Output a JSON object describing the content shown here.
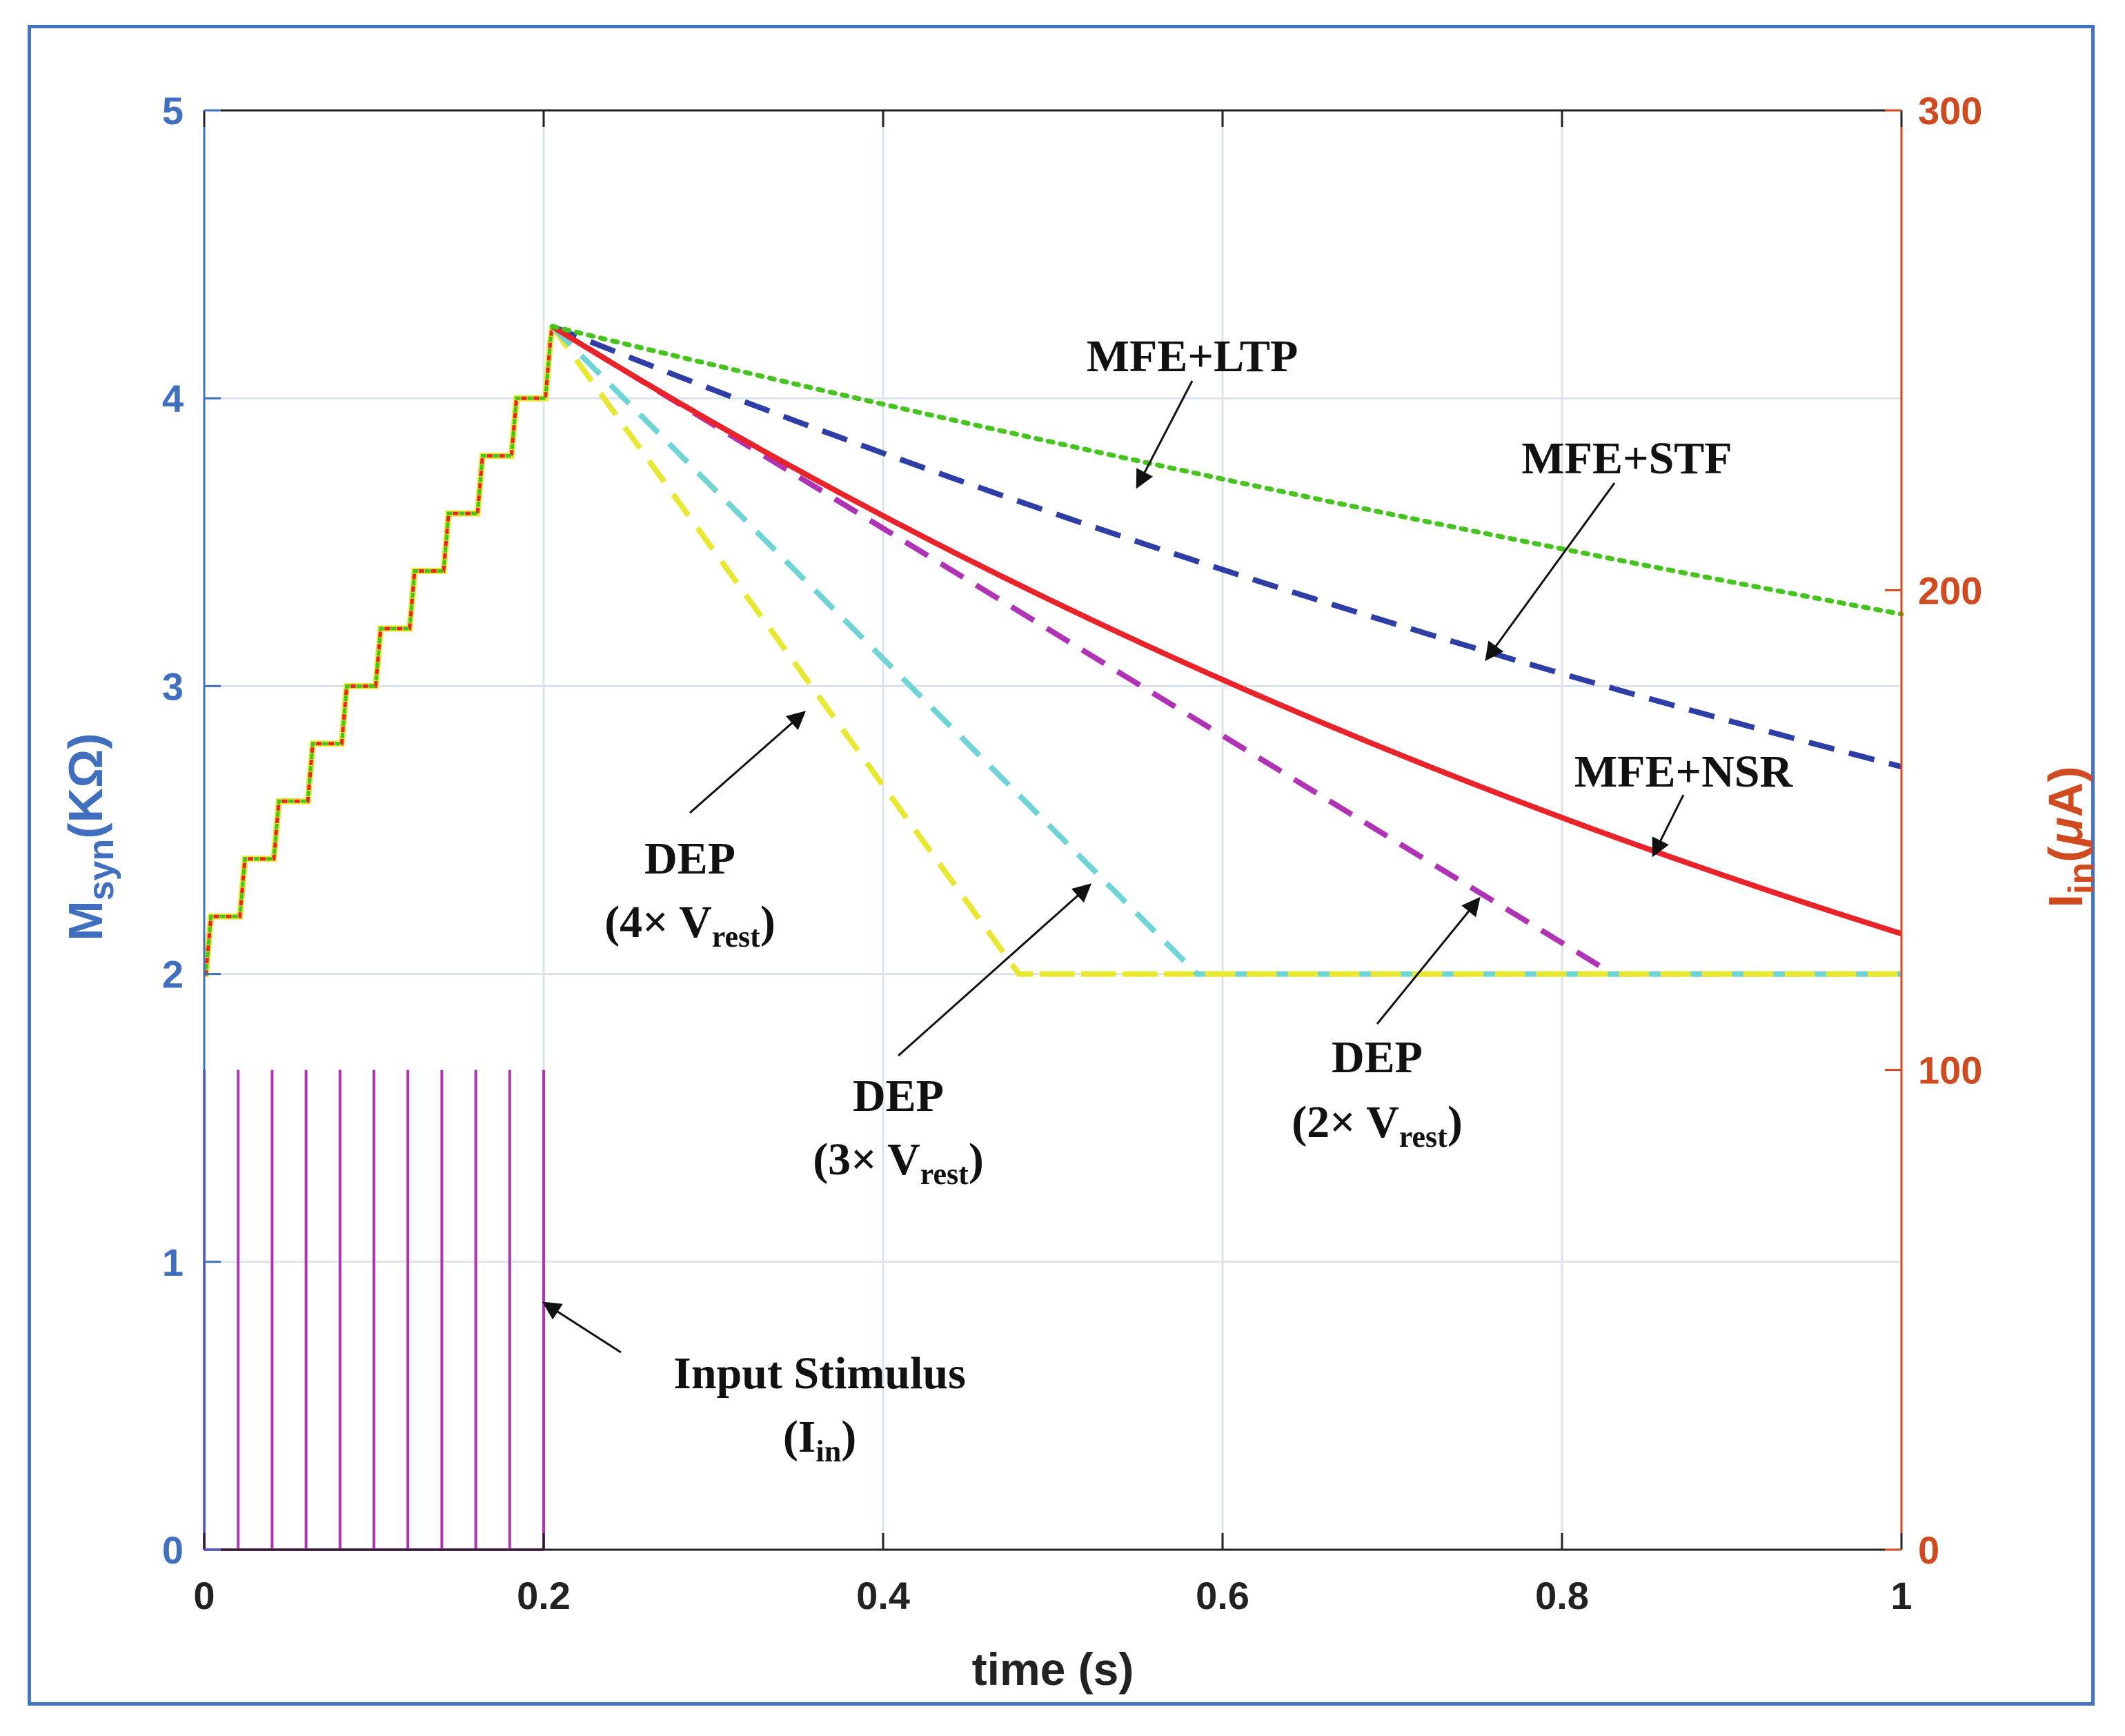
{
  "chart_data": {
    "type": "line",
    "xlabel": "time (s)",
    "ylabel_left": {
      "main": "M",
      "sub": "syn",
      "unit": "(KΩ)"
    },
    "ylabel_right": {
      "main": "I",
      "sub": "in",
      "unit_open": "(",
      "unit_mu": "μ",
      "unit_rest": "A)"
    },
    "xlim": [
      0,
      1
    ],
    "ylim_left": [
      0,
      5
    ],
    "ylim_right": [
      0,
      300
    ],
    "xticks": [
      "0",
      "0.2",
      "0.4",
      "0.6",
      "0.8",
      "1"
    ],
    "yticks_left": [
      "0",
      "1",
      "2",
      "3",
      "4",
      "5"
    ],
    "yticks_right": [
      "0",
      "100",
      "200",
      "300"
    ],
    "grid": true,
    "colors": {
      "ltp": "#44c41c",
      "stf": "#2f3ea6",
      "nsr": "#e8242a",
      "dep2": "#b032b5",
      "dep3": "#6fd4d6",
      "dep4": "#e8e832",
      "stimulus": "#b032b5",
      "left_axis": "#3f6fbe",
      "right_axis": "#d04a20"
    },
    "learning": {
      "start": 2.0,
      "step": 0.2,
      "pulse_period": 0.02,
      "pulses": 11,
      "peak_time": 0.205,
      "peak": 4.25
    },
    "series": [
      {
        "name": "MFE+LTP",
        "style": "dotted",
        "decay": "exp",
        "floor": 0,
        "end_value": 3.25
      },
      {
        "name": "MFE+STF",
        "style": "dashed",
        "decay": "exp",
        "floor": 0,
        "end_value": 2.72
      },
      {
        "name": "MFE+NSR",
        "style": "solid",
        "decay": "exp",
        "floor": 0,
        "end_value": 2.14
      },
      {
        "name": "DEP (2× Vrest)",
        "style": "dashed",
        "decay": "linear",
        "floor": 2.0,
        "floor_time": 0.83
      },
      {
        "name": "DEP (3× Vrest)",
        "style": "dashed",
        "decay": "linear",
        "floor": 2.0,
        "floor_time": 0.585
      },
      {
        "name": "DEP (4× Vrest)",
        "style": "dashed",
        "decay": "linear",
        "floor": 2.0,
        "floor_time": 0.48
      }
    ],
    "stimulus": {
      "name": "Input Stimulus",
      "axis": "right",
      "amplitude": 100,
      "times": [
        0,
        0.02,
        0.04,
        0.06,
        0.08,
        0.1,
        0.12,
        0.14,
        0.16,
        0.18,
        0.2
      ]
    },
    "annotations": {
      "ltp": "MFE+LTP",
      "stf": "MFE+STF",
      "nsr": "MFE+NSR",
      "dep_word": "DEP",
      "dep2_factor": "(2× V",
      "dep3_factor": "(3× V",
      "dep4_factor": "(4× V",
      "rest_sub": "rest",
      "close_paren": ")",
      "stimulus_line1": "Input Stimulus",
      "stimulus_open": "(I",
      "stimulus_sub": "in",
      "stimulus_close": ")"
    }
  }
}
